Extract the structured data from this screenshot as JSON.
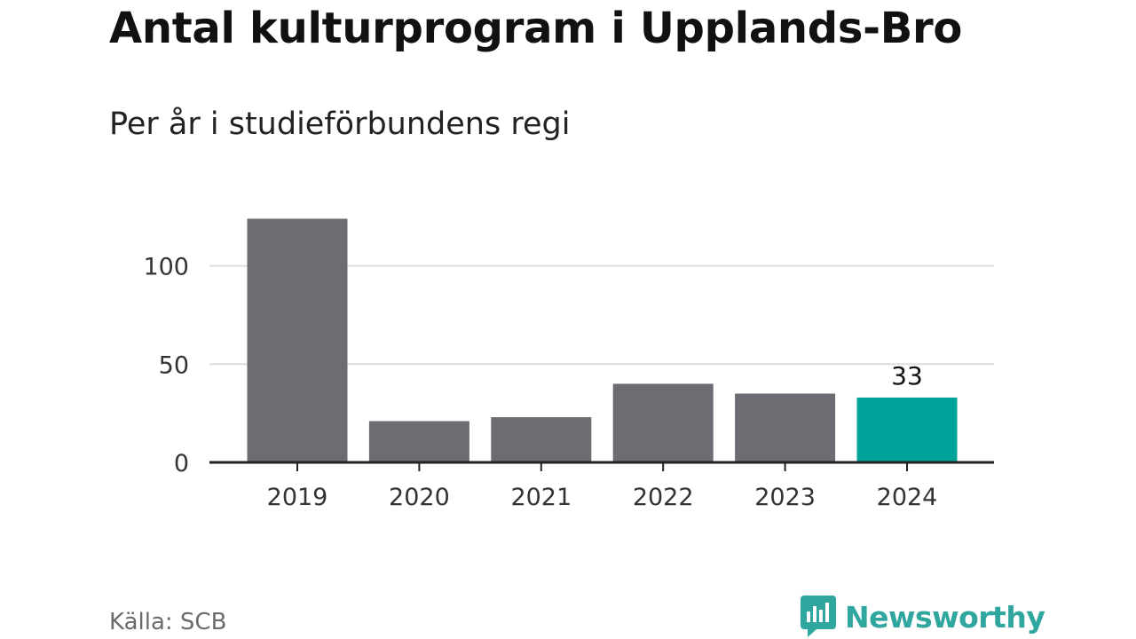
{
  "title": "Antal kulturprogram i Upplands-Bro",
  "subtitle": "Per år i studieförbundens regi",
  "source": "Källa: SCB",
  "brand": {
    "name": "Newsworthy",
    "icon": "newsworthy-logo-icon",
    "color": "#2fa69e"
  },
  "chart_data": {
    "type": "bar",
    "categories": [
      "2019",
      "2020",
      "2021",
      "2022",
      "2023",
      "2024"
    ],
    "values": [
      124,
      21,
      23,
      40,
      35,
      33
    ],
    "highlight_index": 5,
    "data_labels": [
      {
        "index": 5,
        "text": "33"
      }
    ],
    "yticks": [
      0,
      50,
      100
    ],
    "ylim": [
      0,
      125
    ],
    "grid": true,
    "colors": {
      "bar": "#6d6c73",
      "highlight": "#00a39a",
      "grid": "#dddddd",
      "axis": "#222222"
    }
  }
}
